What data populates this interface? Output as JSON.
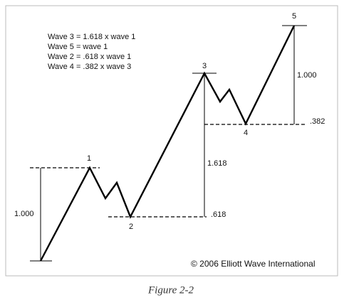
{
  "notes": [
    "Wave 3 = 1.618 x wave 1",
    "Wave 5 = wave 1",
    "Wave 2 = .618 x wave 1",
    "Wave 4 = .382 x wave 3"
  ],
  "wave_labels": [
    "1",
    "2",
    "3",
    "4",
    "5"
  ],
  "measures": {
    "wave1_length": "1.000",
    "wave3_length": "1.618",
    "wave2_retrace": ".618",
    "wave5_length": "1.000",
    "wave4_retrace": ".382"
  },
  "copyright": "© 2006 Elliott Wave International",
  "caption": "Figure 2-2"
}
